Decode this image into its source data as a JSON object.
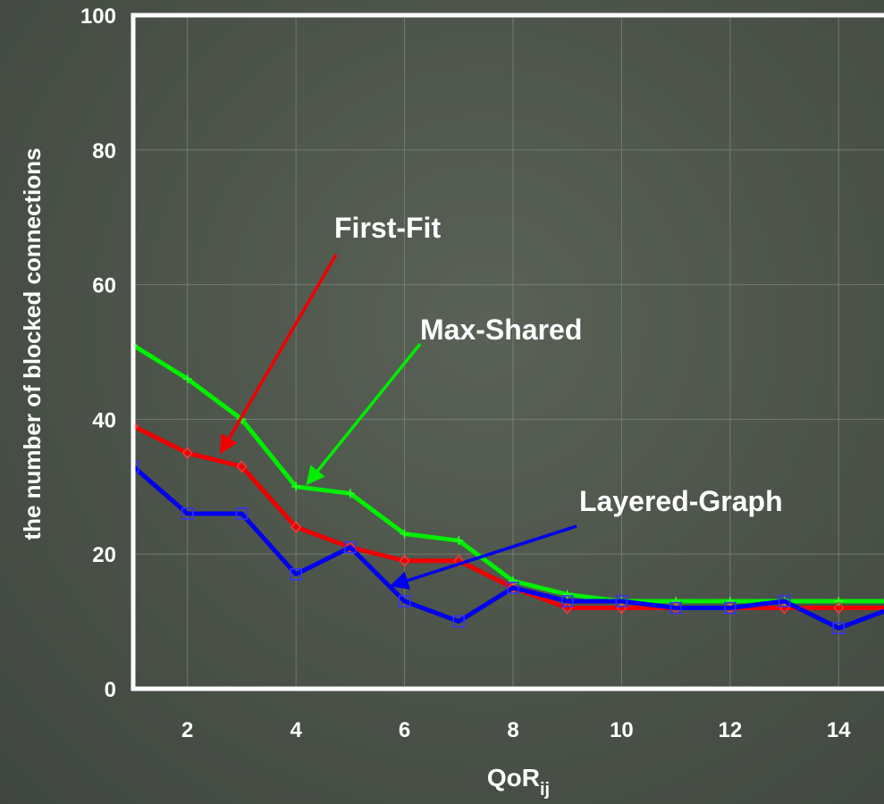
{
  "chart_data": {
    "type": "line",
    "xlabel": "QoR",
    "xlabel_sub": "ij",
    "ylabel": "the number of blocked connections",
    "xlim": [
      1,
      15
    ],
    "ylim": [
      0,
      100
    ],
    "x_ticks": [
      2,
      4,
      6,
      8,
      10,
      12,
      14
    ],
    "y_ticks": [
      0,
      20,
      40,
      60,
      80,
      100
    ],
    "grid": true,
    "x": [
      1,
      2,
      3,
      4,
      5,
      6,
      7,
      8,
      9,
      10,
      11,
      12,
      13,
      14,
      15
    ],
    "series": [
      {
        "name": "Max-Shared",
        "color": "#00ee00",
        "marker": "plus",
        "values": [
          51,
          46,
          40,
          30,
          29,
          23,
          22,
          16,
          14,
          13,
          13,
          13,
          13,
          13,
          13
        ]
      },
      {
        "name": "First-Fit",
        "color": "#ee0000",
        "marker": "diamond",
        "values": [
          39,
          35,
          33,
          24,
          21,
          19,
          19,
          15,
          12,
          12,
          12,
          12,
          12,
          12,
          12
        ]
      },
      {
        "name": "Layered-Graph",
        "color": "#0000ee",
        "marker": "square",
        "values": [
          33,
          26,
          26,
          17,
          21,
          13,
          10,
          15,
          13,
          13,
          12,
          12,
          13,
          9,
          12
        ]
      }
    ],
    "annotations": [
      {
        "text": "First-Fit",
        "series": "First-Fit"
      },
      {
        "text": "Max-Shared",
        "series": "Max-Shared"
      },
      {
        "text": "Layered-Graph",
        "series": "Layered-Graph"
      }
    ]
  }
}
